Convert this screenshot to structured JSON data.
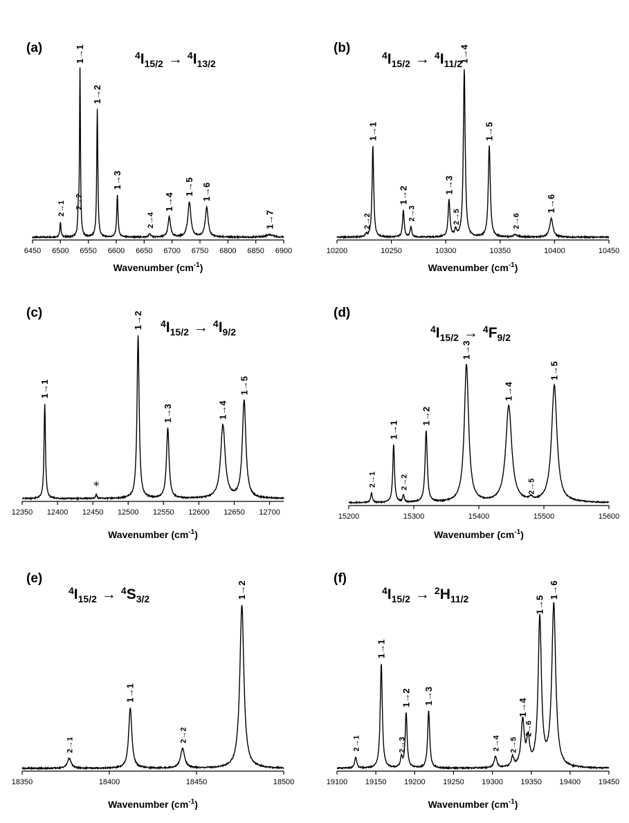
{
  "chart_data": [
    {
      "type": "line",
      "panel": "(a)",
      "transition": {
        "a": "4",
        "b": "I",
        "c": "15/2",
        "arrow": "→",
        "d": "4",
        "e": "I",
        "f": "13/2"
      },
      "xlabel": "Wavenumber (cm",
      "xlabel_sup": "-1",
      "xlabel_end": ")",
      "xlim": [
        6450,
        6900
      ],
      "ylim": [
        0,
        1
      ],
      "xticks": [
        6450,
        6500,
        6550,
        6600,
        6650,
        6700,
        6750,
        6800,
        6850,
        6900
      ],
      "peaks": [
        {
          "label": "2→1",
          "x": 6500,
          "y": 0.09,
          "w": 1.2
        },
        {
          "label": "2→2",
          "x": 6532,
          "y": 0.13,
          "w": 1.0
        },
        {
          "label": "1→1",
          "x": 6535,
          "y": 1.0,
          "w": 1.0
        },
        {
          "label": "1→2",
          "x": 6566,
          "y": 0.76,
          "w": 1.2
        },
        {
          "label": "1→3",
          "x": 6602,
          "y": 0.25,
          "w": 1.4
        },
        {
          "label": "2→4",
          "x": 6660,
          "y": 0.02,
          "w": 2.0
        },
        {
          "label": "1→4",
          "x": 6695,
          "y": 0.12,
          "w": 2.6
        },
        {
          "label": "1→5",
          "x": 6731,
          "y": 0.21,
          "w": 3.2
        },
        {
          "label": "1→6",
          "x": 6762,
          "y": 0.18,
          "w": 3.0
        },
        {
          "label": "1→7",
          "x": 6875,
          "y": 0.015,
          "w": 8.0
        }
      ]
    },
    {
      "type": "line",
      "panel": "(b)",
      "transition": {
        "a": "4",
        "b": "I",
        "c": "15/2",
        "arrow": "→",
        "d": "4",
        "e": "I",
        "f": "11/2"
      },
      "xlabel": "Wavenumber (cm",
      "xlabel_sup": "-1",
      "xlabel_end": ")",
      "xlim": [
        10200,
        10450
      ],
      "ylim": [
        0,
        1
      ],
      "xticks": [
        10200,
        10250,
        10300,
        10350,
        10400,
        10450
      ],
      "peaks": [
        {
          "label": "2→2",
          "x": 10227,
          "y": 0.015,
          "w": 1.0
        },
        {
          "label": "1→1",
          "x": 10233,
          "y": 0.54,
          "w": 0.9
        },
        {
          "label": "1→2",
          "x": 10261,
          "y": 0.16,
          "w": 0.9
        },
        {
          "label": "2→3",
          "x": 10268,
          "y": 0.06,
          "w": 0.9
        },
        {
          "label": "1→3",
          "x": 10303,
          "y": 0.22,
          "w": 1.0
        },
        {
          "label": "2→5",
          "x": 10309,
          "y": 0.04,
          "w": 1.0
        },
        {
          "label": "1→4",
          "x": 10317,
          "y": 1.0,
          "w": 1.0
        },
        {
          "label": "1→5",
          "x": 10340,
          "y": 0.54,
          "w": 1.1
        },
        {
          "label": "2→6",
          "x": 10364,
          "y": 0.015,
          "w": 2.0
        },
        {
          "label": "1→6",
          "x": 10397,
          "y": 0.11,
          "w": 1.8
        }
      ]
    },
    {
      "type": "line",
      "panel": "(c)",
      "transition": {
        "a": "4",
        "b": "I",
        "c": "15/2",
        "arrow": "→",
        "d": "4",
        "e": "I",
        "f": "9/2"
      },
      "xlabel": "Wavenumber (cm",
      "xlabel_sup": "-1",
      "xlabel_end": ")",
      "xlim": [
        12350,
        12720
      ],
      "ylim": [
        0,
        1
      ],
      "xticks": [
        12350,
        12400,
        12450,
        12500,
        12550,
        12600,
        12650,
        12700
      ],
      "peaks": [
        {
          "label": "1→1",
          "x": 12382,
          "y": 0.58,
          "w": 1.2
        },
        {
          "label": "*",
          "x": 12455,
          "y": 0.03,
          "w": 1.0
        },
        {
          "label": "1→2",
          "x": 12514,
          "y": 1.0,
          "w": 1.8
        },
        {
          "label": "1→3",
          "x": 12556,
          "y": 0.43,
          "w": 2.2
        },
        {
          "label": "1→4",
          "x": 12634,
          "y": 0.45,
          "w": 3.8
        },
        {
          "label": "1→5",
          "x": 12664,
          "y": 0.6,
          "w": 3.0
        }
      ]
    },
    {
      "type": "line",
      "panel": "(d)",
      "transition": {
        "a": "4",
        "b": "I",
        "c": "15/2",
        "arrow": "→",
        "d": "4",
        "e": "F",
        "f": "9/2"
      },
      "xlabel": "Wavenumber (cm",
      "xlabel_sup": "-1",
      "xlabel_end": ")",
      "xlim": [
        15200,
        15600
      ],
      "ylim": [
        0,
        1
      ],
      "xticks": [
        15200,
        15300,
        15400,
        15500,
        15600
      ],
      "peaks": [
        {
          "label": "2→1",
          "x": 15235,
          "y": 0.07,
          "w": 1.5
        },
        {
          "label": "1→1",
          "x": 15269,
          "y": 0.42,
          "w": 1.6
        },
        {
          "label": "2→2",
          "x": 15284,
          "y": 0.05,
          "w": 1.5
        },
        {
          "label": "1→2",
          "x": 15319,
          "y": 0.52,
          "w": 2.0
        },
        {
          "label": "1→3",
          "x": 15381,
          "y": 1.0,
          "w": 4.0
        },
        {
          "label": "1→4",
          "x": 15446,
          "y": 0.7,
          "w": 5.5
        },
        {
          "label": "2→5",
          "x": 15480,
          "y": 0.02,
          "w": 3.0
        },
        {
          "label": "1→5",
          "x": 15516,
          "y": 0.85,
          "w": 5.0
        }
      ]
    },
    {
      "type": "line",
      "panel": "(e)",
      "transition": {
        "a": "4",
        "b": "I",
        "c": "15/2",
        "arrow": "→",
        "d": "4",
        "e": "S",
        "f": "3/2"
      },
      "xlabel": "Wavenumber (cm",
      "xlabel_sup": "-1",
      "xlabel_end": ")",
      "xlim": [
        18350,
        18500
      ],
      "ylim": [
        0,
        1
      ],
      "xticks": [
        18350,
        18400,
        18450,
        18500
      ],
      "peaks": [
        {
          "label": "2→1",
          "x": 18377,
          "y": 0.06,
          "w": 1.3
        },
        {
          "label": "1→1",
          "x": 18412,
          "y": 0.37,
          "w": 1.1
        },
        {
          "label": "2→2",
          "x": 18442,
          "y": 0.12,
          "w": 1.4
        },
        {
          "label": "1→2",
          "x": 18476,
          "y": 1.0,
          "w": 1.4
        }
      ]
    },
    {
      "type": "line",
      "panel": "(f)",
      "transition": {
        "a": "4",
        "b": "I",
        "c": "15/2",
        "arrow": "→",
        "d": "2",
        "e": "H",
        "f": "11/2"
      },
      "xlabel": "Wavenumber (cm",
      "xlabel_sup": "-1",
      "xlabel_end": ")",
      "xlim": [
        19100,
        19450
      ],
      "ylim": [
        0,
        1
      ],
      "xticks": [
        19100,
        19150,
        19200,
        19250,
        19300,
        19350,
        19400,
        19450
      ],
      "peaks": [
        {
          "label": "2→1",
          "x": 19124,
          "y": 0.07,
          "w": 1.5
        },
        {
          "label": "1→1",
          "x": 19157,
          "y": 0.64,
          "w": 1.6
        },
        {
          "label": "2→3",
          "x": 19183,
          "y": 0.06,
          "w": 1.5
        },
        {
          "label": "1→2",
          "x": 19189,
          "y": 0.34,
          "w": 1.5
        },
        {
          "label": "1→3",
          "x": 19218,
          "y": 0.35,
          "w": 1.6
        },
        {
          "label": "2→4",
          "x": 19304,
          "y": 0.07,
          "w": 2.0
        },
        {
          "label": "2→5",
          "x": 19326,
          "y": 0.06,
          "w": 2.0
        },
        {
          "label": "1→4",
          "x": 19339,
          "y": 0.28,
          "w": 2.5
        },
        {
          "label": "2→6",
          "x": 19346,
          "y": 0.16,
          "w": 2.2
        },
        {
          "label": "1→5",
          "x": 19361,
          "y": 0.91,
          "w": 2.5
        },
        {
          "label": "1→6",
          "x": 19379,
          "y": 1.0,
          "w": 3.0
        }
      ]
    }
  ]
}
